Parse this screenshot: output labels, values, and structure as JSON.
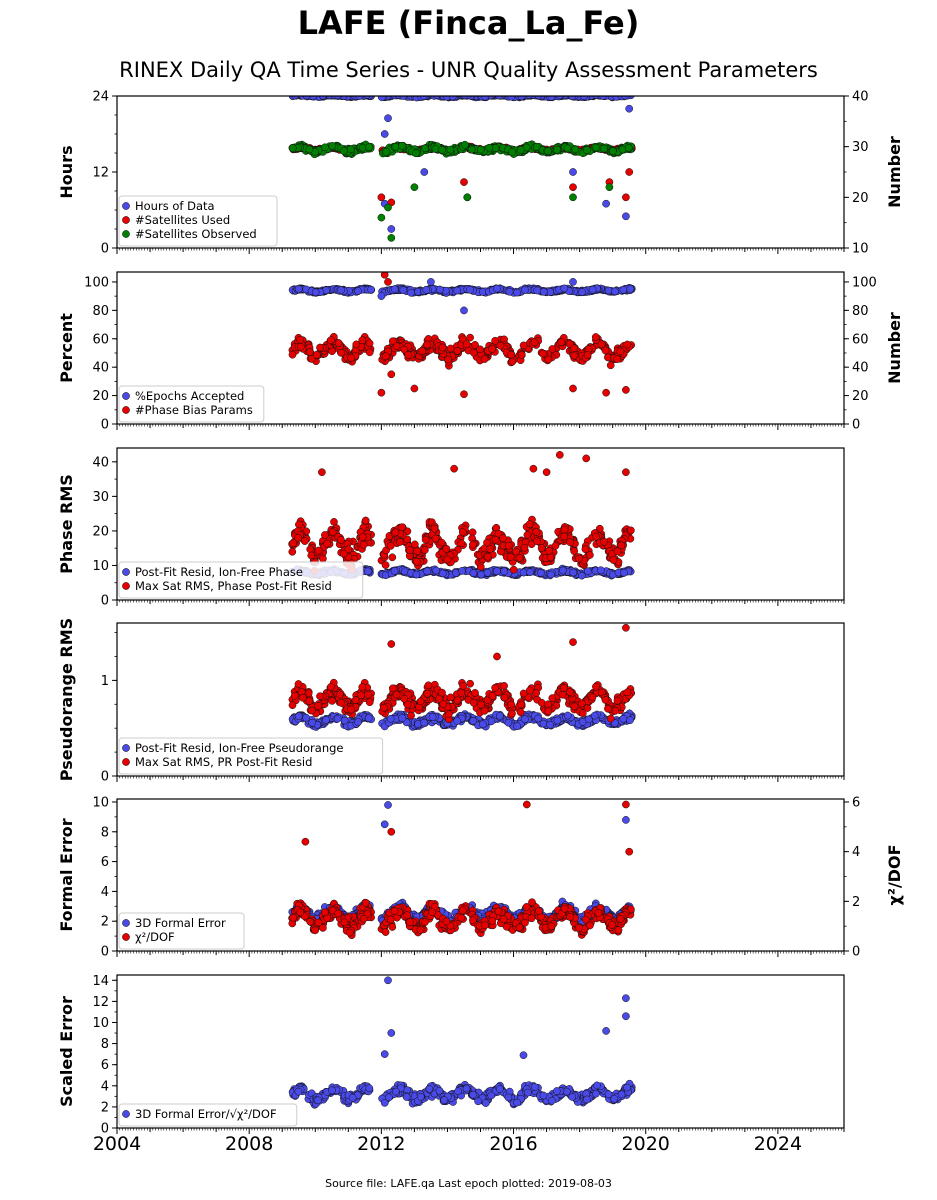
{
  "title": "LAFE (Finca_La_Fe)",
  "subtitle": "RINEX Daily QA Time Series - UNR Quality Assessment Parameters",
  "footer": "Source file: LAFE.qa Last epoch plotted: 2019-08-03",
  "chart_data": {
    "type": "scatter",
    "shared_x": {
      "label": "",
      "range": [
        2004,
        2026
      ],
      "ticks": [
        2004,
        2008,
        2012,
        2016,
        2020,
        2024
      ],
      "tick_labels": [
        "2004",
        "2008",
        "2012",
        "2016",
        "2020",
        "2024"
      ],
      "data_span": [
        2009.3,
        2019.6
      ],
      "gap": [
        2011.7,
        2012.0
      ],
      "last_epoch": "2019-08-03"
    },
    "colors": {
      "blue": "#4a4ae8",
      "red": "#e60000",
      "green": "#008000"
    },
    "panels": [
      {
        "ylabel": "Hours",
        "ylim": [
          0,
          24
        ],
        "yticks": [
          0,
          12,
          24
        ],
        "y2label": "Number",
        "y2lim": [
          10,
          40
        ],
        "y2ticks": [
          10,
          20,
          30,
          40
        ],
        "series": [
          {
            "name": "Hours of Data",
            "color": "blue",
            "axis": "left",
            "base": 24,
            "spread": 0.2,
            "outliers": [
              [
                2012.1,
                18.0
              ],
              [
                2012.2,
                20.5
              ],
              [
                2012.3,
                3.0
              ],
              [
                2012.1,
                7.0
              ],
              [
                2013.3,
                12.0
              ],
              [
                2014.6,
                8.0
              ],
              [
                2017.8,
                12.0
              ],
              [
                2018.8,
                7.0
              ],
              [
                2019.4,
                5.0
              ],
              [
                2019.5,
                22.0
              ]
            ]
          },
          {
            "name": "#Satellites Used",
            "color": "red",
            "axis": "right",
            "base": 29.5,
            "spread": 0.5,
            "outliers": [
              [
                2012.0,
                20.0
              ],
              [
                2012.3,
                19.0
              ],
              [
                2014.5,
                23.0
              ],
              [
                2017.8,
                22.0
              ],
              [
                2018.9,
                23.0
              ],
              [
                2019.4,
                20.0
              ],
              [
                2019.5,
                25.0
              ]
            ]
          },
          {
            "name": "#Satellites Observed",
            "color": "green",
            "axis": "right",
            "base": 29.5,
            "spread": 0.8,
            "outliers": [
              [
                2012.0,
                16.0
              ],
              [
                2012.2,
                18.0
              ],
              [
                2012.3,
                12.0
              ],
              [
                2013.0,
                22.0
              ],
              [
                2014.6,
                20.0
              ],
              [
                2017.8,
                20.0
              ],
              [
                2018.9,
                22.0
              ]
            ]
          }
        ]
      },
      {
        "ylabel": "Percent",
        "ylim": [
          0,
          107
        ],
        "yticks": [
          0,
          20,
          40,
          60,
          80,
          100
        ],
        "y2label": "Number",
        "y2lim": [
          0,
          107
        ],
        "y2ticks": [
          0,
          20,
          40,
          60,
          80,
          100
        ],
        "series": [
          {
            "name": "%Epochs Accepted",
            "color": "blue",
            "axis": "left",
            "base": 94,
            "spread": 1.5,
            "outliers": [
              [
                2012.0,
                90.0
              ],
              [
                2014.5,
                80.0
              ],
              [
                2017.8,
                100.0
              ],
              [
                2013.5,
                100.0
              ]
            ]
          },
          {
            "name": "#Phase Bias Params",
            "color": "red",
            "axis": "right",
            "base": 52,
            "spread": 8,
            "outliers": [
              [
                2012.0,
                22.0
              ],
              [
                2012.1,
                105.0
              ],
              [
                2012.3,
                35.0
              ],
              [
                2014.5,
                21.0
              ],
              [
                2013.0,
                25.0
              ],
              [
                2017.8,
                25.0
              ],
              [
                2018.8,
                22.0
              ],
              [
                2019.4,
                24.0
              ],
              [
                2012.2,
                100.0
              ]
            ]
          }
        ]
      },
      {
        "ylabel": "Phase RMS",
        "ylim": [
          0,
          44
        ],
        "yticks": [
          0,
          10,
          20,
          30,
          40
        ],
        "series": [
          {
            "name": "Post-Fit Resid, Ion-Free Phase",
            "color": "blue",
            "axis": "left",
            "base": 8,
            "spread": 0.8,
            "outliers": []
          },
          {
            "name": "Max Sat RMS, Phase Post-Fit Resid",
            "color": "red",
            "axis": "left",
            "base": 16,
            "spread": 6,
            "outliers": [
              [
                2017.4,
                42.0
              ],
              [
                2018.2,
                41.0
              ],
              [
                2016.6,
                38.0
              ],
              [
                2010.2,
                37.0
              ],
              [
                2019.4,
                37.0
              ],
              [
                2014.2,
                38.0
              ],
              [
                2017.0,
                37.0
              ]
            ]
          }
        ]
      },
      {
        "ylabel": "Pseudorange RMS",
        "ylim": [
          0,
          1.6
        ],
        "yticks": [
          0,
          1
        ],
        "series": [
          {
            "name": "Post-Fit Resid, Ion-Free Pseudorange",
            "color": "blue",
            "axis": "left",
            "base": 0.58,
            "spread": 0.06,
            "outliers": []
          },
          {
            "name": "Max Sat RMS, PR Post-Fit Resid",
            "color": "red",
            "axis": "left",
            "base": 0.8,
            "spread": 0.15,
            "outliers": [
              [
                2012.3,
                1.38
              ],
              [
                2017.8,
                1.4
              ],
              [
                2019.4,
                1.55
              ],
              [
                2015.5,
                1.25
              ]
            ]
          }
        ]
      },
      {
        "ylabel": "Formal Error",
        "ylim": [
          0,
          10.2
        ],
        "yticks": [
          0,
          2,
          4,
          6,
          8,
          10
        ],
        "y2label": "χ²/DOF",
        "y2lim": [
          0,
          6.12
        ],
        "y2ticks": [
          0,
          2,
          4,
          6
        ],
        "series": [
          {
            "name": "3D Formal Error",
            "color": "blue",
            "axis": "left",
            "base": 2.5,
            "spread": 0.6,
            "outliers": [
              [
                2012.2,
                9.8
              ],
              [
                2012.1,
                8.5
              ],
              [
                2019.4,
                8.8
              ]
            ]
          },
          {
            "name": "χ²/DOF",
            "color": "red",
            "axis": "right",
            "base": 1.3,
            "spread": 0.55,
            "outliers": [
              [
                2016.4,
                5.9
              ],
              [
                2019.4,
                5.9
              ],
              [
                2012.3,
                4.8
              ],
              [
                2009.7,
                4.4
              ],
              [
                2019.5,
                4.0
              ]
            ]
          }
        ]
      },
      {
        "ylabel": "Scaled Error",
        "ylim": [
          0,
          14.5
        ],
        "yticks": [
          0,
          2,
          4,
          6,
          8,
          10,
          12,
          14
        ],
        "series": [
          {
            "name": "3D Formal Error/√χ²/DOF",
            "color": "blue",
            "axis": "left",
            "base": 3.2,
            "spread": 0.8,
            "outliers": [
              [
                2012.2,
                14.0
              ],
              [
                2012.3,
                9.0
              ],
              [
                2012.1,
                7.0
              ],
              [
                2019.4,
                12.3
              ],
              [
                2019.4,
                10.6
              ],
              [
                2018.8,
                9.2
              ],
              [
                2016.3,
                6.9
              ]
            ]
          }
        ]
      }
    ]
  }
}
